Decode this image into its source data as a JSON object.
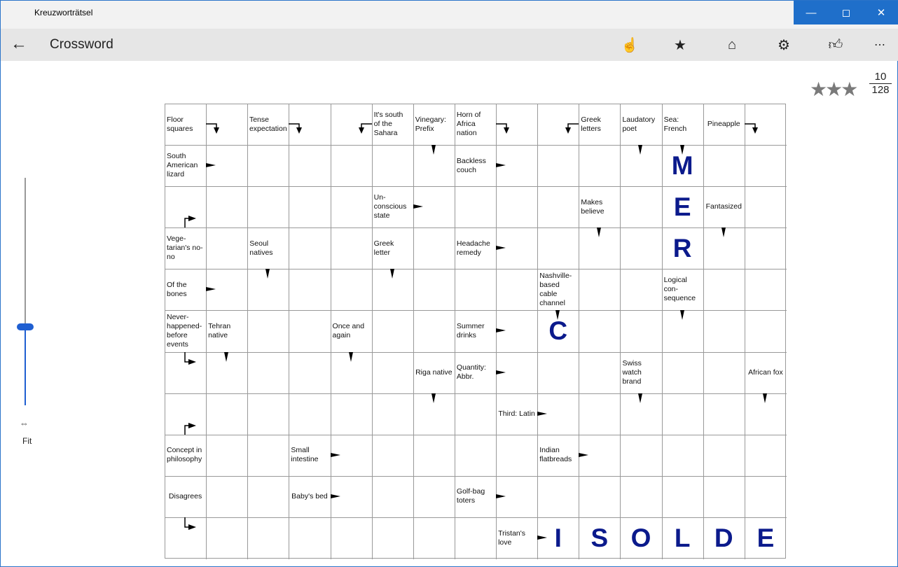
{
  "window": {
    "app_title": "Kreuzworträtsel",
    "controls": [
      "minimize",
      "maximize",
      "close"
    ]
  },
  "header": {
    "back_icon": "arrow-left-icon",
    "title": "Crossword",
    "icons": [
      "touch-hand-icon",
      "star-icon",
      "home-icon",
      "gear-icon",
      "thumbs-up-icon",
      "more-icon"
    ]
  },
  "rating": {
    "stars": "★★★",
    "filled_stars": 3,
    "progress_numerator": "10",
    "progress_denominator": "128"
  },
  "zoom": {
    "label": "Fit",
    "level_percent": 35
  },
  "colors": {
    "accent": "#1f5fd1",
    "letter": "#0b1a8c",
    "titlebar_controls": "#1f6fca"
  },
  "grid": {
    "rows": 11,
    "cols": 15,
    "clues": [
      {
        "r": 0,
        "c": 0,
        "text": "Floor squares"
      },
      {
        "r": 0,
        "c": 2,
        "text": "Tense expectation"
      },
      {
        "r": 0,
        "c": 5,
        "text": "It's south of the Sahara"
      },
      {
        "r": 0,
        "c": 6,
        "text": "Vinegary: Prefix"
      },
      {
        "r": 0,
        "c": 7,
        "text": "Horn of Africa nation"
      },
      {
        "r": 0,
        "c": 10,
        "text": "Greek letters"
      },
      {
        "r": 0,
        "c": 11,
        "text": "Laudatory poet"
      },
      {
        "r": 0,
        "c": 12,
        "text": "Sea: French"
      },
      {
        "r": 0,
        "c": 13,
        "text": "Pineapple"
      },
      {
        "r": 1,
        "c": 0,
        "text": "South American lizard"
      },
      {
        "r": 1,
        "c": 7,
        "text": "Backless couch"
      },
      {
        "r": 2,
        "c": 5,
        "text": "Un-conscious state"
      },
      {
        "r": 2,
        "c": 10,
        "text": "Makes believe"
      },
      {
        "r": 2,
        "c": 13,
        "text": "Fantasized"
      },
      {
        "r": 3,
        "c": 0,
        "text": "Vege-tarian's no-no"
      },
      {
        "r": 3,
        "c": 2,
        "text": "Seoul natives"
      },
      {
        "r": 3,
        "c": 5,
        "text": "Greek letter"
      },
      {
        "r": 3,
        "c": 7,
        "text": "Headache remedy"
      },
      {
        "r": 4,
        "c": 0,
        "text": "Of the bones"
      },
      {
        "r": 4,
        "c": 9,
        "text": "Nashville-based cable channel"
      },
      {
        "r": 4,
        "c": 12,
        "text": "Logical con-sequence"
      },
      {
        "r": 5,
        "c": 0,
        "text": "Never-happened-before events"
      },
      {
        "r": 5,
        "c": 1,
        "text": "Tehran native"
      },
      {
        "r": 5,
        "c": 4,
        "text": "Once and again"
      },
      {
        "r": 5,
        "c": 7,
        "text": "Summer drinks"
      },
      {
        "r": 6,
        "c": 6,
        "text": "Riga native"
      },
      {
        "r": 6,
        "c": 7,
        "text": "Quantity: Abbr."
      },
      {
        "r": 6,
        "c": 11,
        "text": "Swiss watch brand"
      },
      {
        "r": 6,
        "c": 14,
        "text": "African fox"
      },
      {
        "r": 7,
        "c": 8,
        "text": "Third: Latin"
      },
      {
        "r": 8,
        "c": 0,
        "text": "Concept in philosophy"
      },
      {
        "r": 8,
        "c": 3,
        "text": "Small intestine"
      },
      {
        "r": 8,
        "c": 9,
        "text": "Indian flatbreads"
      },
      {
        "r": 9,
        "c": 0,
        "text": "Disagrees"
      },
      {
        "r": 9,
        "c": 3,
        "text": "Baby's bed"
      },
      {
        "r": 9,
        "c": 7,
        "text": "Golf-bag toters"
      },
      {
        "r": 10,
        "c": 8,
        "text": "Tristan's love"
      }
    ],
    "letters": [
      {
        "r": 1,
        "c": 12,
        "ch": "M"
      },
      {
        "r": 2,
        "c": 12,
        "ch": "E"
      },
      {
        "r": 3,
        "c": 12,
        "ch": "R"
      },
      {
        "r": 5,
        "c": 9,
        "ch": "C"
      },
      {
        "r": 10,
        "c": 9,
        "ch": "I"
      },
      {
        "r": 10,
        "c": 10,
        "ch": "S"
      },
      {
        "r": 10,
        "c": 11,
        "ch": "O"
      },
      {
        "r": 10,
        "c": 12,
        "ch": "L"
      },
      {
        "r": 10,
        "c": 13,
        "ch": "D"
      },
      {
        "r": 10,
        "c": 14,
        "ch": "E"
      }
    ],
    "arrows": [
      {
        "r": 0,
        "c": 1,
        "dir": "right-down"
      },
      {
        "r": 0,
        "c": 3,
        "dir": "right-down"
      },
      {
        "r": 0,
        "c": 4,
        "dir": "left-down"
      },
      {
        "r": 0,
        "c": 8,
        "dir": "right-down"
      },
      {
        "r": 0,
        "c": 9,
        "dir": "left-down"
      },
      {
        "r": 0,
        "c": 14,
        "dir": "right-down"
      },
      {
        "r": 1,
        "c": 1,
        "dir": "right"
      },
      {
        "r": 1,
        "c": 6,
        "dir": "down"
      },
      {
        "r": 1,
        "c": 8,
        "dir": "right"
      },
      {
        "r": 1,
        "c": 11,
        "dir": "down"
      },
      {
        "r": 1,
        "c": 12,
        "dir": "down"
      },
      {
        "r": 2,
        "c": 0,
        "dir": "up-right"
      },
      {
        "r": 2,
        "c": 6,
        "dir": "right"
      },
      {
        "r": 3,
        "c": 8,
        "dir": "right"
      },
      {
        "r": 3,
        "c": 10,
        "dir": "down"
      },
      {
        "r": 3,
        "c": 13,
        "dir": "down"
      },
      {
        "r": 4,
        "c": 1,
        "dir": "right"
      },
      {
        "r": 4,
        "c": 2,
        "dir": "down"
      },
      {
        "r": 4,
        "c": 5,
        "dir": "down"
      },
      {
        "r": 5,
        "c": 8,
        "dir": "right"
      },
      {
        "r": 5,
        "c": 9,
        "dir": "down"
      },
      {
        "r": 5,
        "c": 12,
        "dir": "down"
      },
      {
        "r": 6,
        "c": 0,
        "dir": "down-right"
      },
      {
        "r": 6,
        "c": 1,
        "dir": "down"
      },
      {
        "r": 6,
        "c": 4,
        "dir": "down"
      },
      {
        "r": 6,
        "c": 8,
        "dir": "right"
      },
      {
        "r": 7,
        "c": 0,
        "dir": "up-right"
      },
      {
        "r": 7,
        "c": 6,
        "dir": "down"
      },
      {
        "r": 7,
        "c": 9,
        "dir": "right"
      },
      {
        "r": 7,
        "c": 11,
        "dir": "down"
      },
      {
        "r": 7,
        "c": 14,
        "dir": "down"
      },
      {
        "r": 8,
        "c": 4,
        "dir": "right"
      },
      {
        "r": 8,
        "c": 10,
        "dir": "right"
      },
      {
        "r": 9,
        "c": 4,
        "dir": "right"
      },
      {
        "r": 9,
        "c": 8,
        "dir": "right"
      },
      {
        "r": 10,
        "c": 0,
        "dir": "down-right"
      },
      {
        "r": 10,
        "c": 9,
        "dir": "right"
      }
    ]
  }
}
